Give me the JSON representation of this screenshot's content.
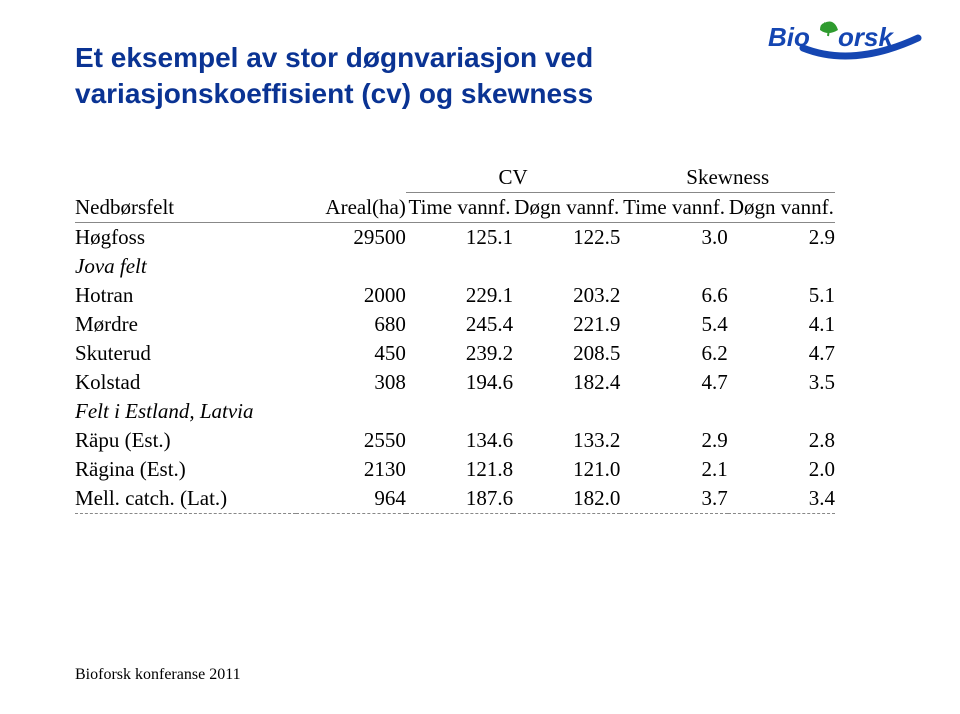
{
  "title_line1": "Et eksempel av stor døgnvariasjon ved",
  "title_line2": "variasjonskoeffisient (cv) og skewness",
  "header": {
    "col1": "Nedbørsfelt",
    "col2": "Areal(ha)",
    "group_cv": "CV",
    "group_sk": "Skewness",
    "sub_time": "Time vannf.",
    "sub_dogn": "Døgn vannf."
  },
  "rows": [
    {
      "label": "Høgfoss",
      "area": "29500",
      "c1": "125.1",
      "c2": "122.5",
      "c3": "3.0",
      "c4": "2.9",
      "italic": false
    },
    {
      "label": "Jova felt",
      "area": "",
      "c1": "",
      "c2": "",
      "c3": "",
      "c4": "",
      "italic": true
    },
    {
      "label": "Hotran",
      "area": "2000",
      "c1": "229.1",
      "c2": "203.2",
      "c3": "6.6",
      "c4": "5.1",
      "italic": false
    },
    {
      "label": "Mørdre",
      "area": "680",
      "c1": "245.4",
      "c2": "221.9",
      "c3": "5.4",
      "c4": "4.1",
      "italic": false
    },
    {
      "label": "Skuterud",
      "area": "450",
      "c1": "239.2",
      "c2": "208.5",
      "c3": "6.2",
      "c4": "4.7",
      "italic": false
    },
    {
      "label": "Kolstad",
      "area": "308",
      "c1": "194.6",
      "c2": "182.4",
      "c3": "4.7",
      "c4": "3.5",
      "italic": false
    },
    {
      "label": "Felt i Estland, Latvia",
      "area": "",
      "c1": "",
      "c2": "",
      "c3": "",
      "c4": "",
      "italic": true
    },
    {
      "label": "Räpu (Est.)",
      "area": "2550",
      "c1": "134.6",
      "c2": "133.2",
      "c3": "2.9",
      "c4": "2.8",
      "italic": false
    },
    {
      "label": "Rägina (Est.)",
      "area": "2130",
      "c1": "121.8",
      "c2": "121.0",
      "c3": "2.1",
      "c4": "2.0",
      "italic": false
    },
    {
      "label": "Mell. catch. (Lat.)",
      "area": "964",
      "c1": "187.6",
      "c2": "182.0",
      "c3": "3.7",
      "c4": "3.4",
      "italic": false
    }
  ],
  "footer": "Bioforsk konferanse 2011",
  "logo_text": "Bioforsk",
  "colors": {
    "title": "#0a3393",
    "logo_leaf": "#2f9b2f",
    "logo_swoosh": "#1546b2",
    "logo_text": "#1546b2"
  }
}
